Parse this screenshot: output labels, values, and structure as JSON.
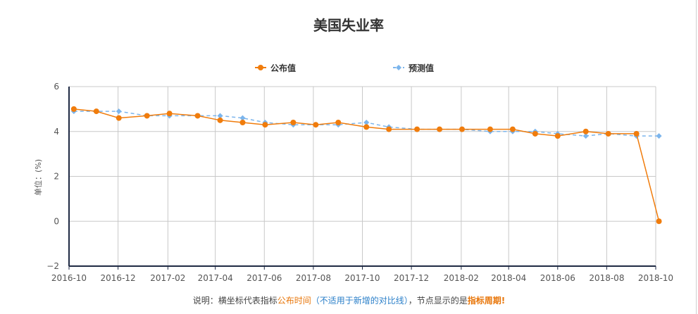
{
  "chart_data": {
    "type": "line",
    "title": "美国失业率",
    "ylabel": "单位：(%)",
    "xlabel": "",
    "ylim": [
      -2,
      6
    ],
    "yticks": [
      -2,
      0,
      2,
      4,
      6
    ],
    "xlim": [
      "2016-10-01",
      "2018-10-01"
    ],
    "xticks": [
      "2016-10",
      "2016-12",
      "2017-02",
      "2017-04",
      "2017-06",
      "2017-08",
      "2017-10",
      "2017-12",
      "2018-02",
      "2018-04",
      "2018-06",
      "2018-08",
      "2018-10"
    ],
    "grid": true,
    "legend_position": "top",
    "series": [
      {
        "name": "公布值",
        "color": "#f07c0c",
        "line_style": "solid",
        "marker": "circle",
        "points": [
          [
            "2016-10-07",
            5.0
          ],
          [
            "2016-11-04",
            4.9
          ],
          [
            "2016-12-02",
            4.6
          ],
          [
            "2017-01-06",
            4.7
          ],
          [
            "2017-02-03",
            4.8
          ],
          [
            "2017-03-10",
            4.7
          ],
          [
            "2017-04-07",
            4.5
          ],
          [
            "2017-05-05",
            4.4
          ],
          [
            "2017-06-02",
            4.3
          ],
          [
            "2017-07-07",
            4.4
          ],
          [
            "2017-08-04",
            4.3
          ],
          [
            "2017-09-01",
            4.4
          ],
          [
            "2017-10-06",
            4.2
          ],
          [
            "2017-11-03",
            4.1
          ],
          [
            "2017-12-08",
            4.1
          ],
          [
            "2018-01-05",
            4.1
          ],
          [
            "2018-02-02",
            4.1
          ],
          [
            "2018-03-09",
            4.1
          ],
          [
            "2018-04-06",
            4.1
          ],
          [
            "2018-05-04",
            3.9
          ],
          [
            "2018-06-01",
            3.8
          ],
          [
            "2018-07-06",
            4.0
          ],
          [
            "2018-08-03",
            3.9
          ],
          [
            "2018-09-07",
            3.9
          ],
          [
            "2018-10-05",
            0
          ]
        ]
      },
      {
        "name": "预测值",
        "color": "#7cb5ec",
        "line_style": "dashed",
        "marker": "diamond",
        "points": [
          [
            "2016-10-07",
            4.9
          ],
          [
            "2016-11-04",
            4.9
          ],
          [
            "2016-12-02",
            4.9
          ],
          [
            "2017-01-06",
            4.7
          ],
          [
            "2017-02-03",
            4.7
          ],
          [
            "2017-03-10",
            4.7
          ],
          [
            "2017-04-07",
            4.7
          ],
          [
            "2017-05-05",
            4.6
          ],
          [
            "2017-06-02",
            4.4
          ],
          [
            "2017-07-07",
            4.3
          ],
          [
            "2017-08-04",
            4.3
          ],
          [
            "2017-09-01",
            4.3
          ],
          [
            "2017-10-06",
            4.4
          ],
          [
            "2017-11-03",
            4.2
          ],
          [
            "2017-12-08",
            4.1
          ],
          [
            "2018-01-05",
            4.1
          ],
          [
            "2018-02-02",
            4.1
          ],
          [
            "2018-03-09",
            4.0
          ],
          [
            "2018-04-06",
            4.0
          ],
          [
            "2018-05-04",
            4.0
          ],
          [
            "2018-06-01",
            3.9
          ],
          [
            "2018-07-06",
            3.8
          ],
          [
            "2018-08-03",
            3.9
          ],
          [
            "2018-09-07",
            3.8
          ],
          [
            "2018-10-05",
            3.8
          ]
        ]
      }
    ]
  },
  "note": {
    "prefix": "说明：横坐标代表指标",
    "highlight1": "公布时间",
    "paren_open": "（",
    "highlight2": "不适用于新增的对比线",
    "paren_close": "）",
    "middle": "，节点显示的是",
    "highlight3": "指标周期!"
  }
}
